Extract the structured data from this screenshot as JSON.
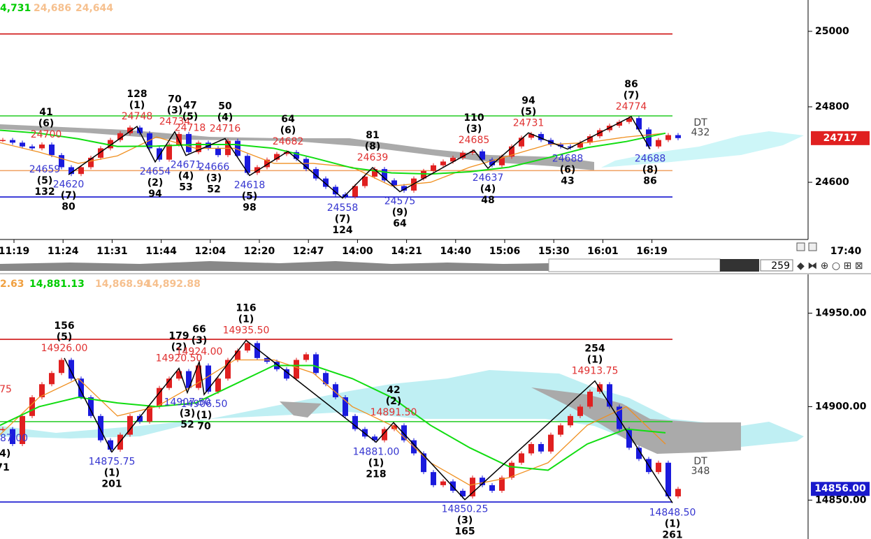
{
  "top_panel": {
    "legend": [
      "4,731",
      "24,686",
      "24,644"
    ],
    "ylim": [
      24454,
      25083
    ],
    "yticks": [
      25000,
      24800,
      24600
    ],
    "price_tag": "24717",
    "dt_label": "DT",
    "dt_value": "432",
    "times": [
      "11:19",
      "11:24",
      "11:31",
      "11:44",
      "12:04",
      "12:20",
      "12:47",
      "14:00",
      "14:21",
      "14:40",
      "15:06",
      "15:30",
      "16:01",
      "16:19"
    ],
    "corner_time": "17:40",
    "levels": [
      {
        "color": "#cc0000",
        "value": 24993
      },
      {
        "color": "#22cc22",
        "value": 24776
      },
      {
        "color": "#f0a060",
        "value": 24631
      },
      {
        "color": "#0000cc",
        "value": 24561
      }
    ],
    "closes": [
      24712,
      24705,
      24695,
      24690,
      24700,
      24672,
      24640,
      24622,
      24640,
      24665,
      24690,
      24712,
      24730,
      24745,
      24730,
      24690,
      24660,
      24700,
      24728,
      24680,
      24705,
      24690,
      24672,
      24710,
      24670,
      24625,
      24640,
      24660,
      24675,
      24680,
      24662,
      24635,
      24610,
      24588,
      24568,
      24562,
      24590,
      24615,
      24635,
      24605,
      24590,
      24578,
      24610,
      24630,
      24645,
      24655,
      24665,
      24678,
      24682,
      24660,
      24645,
      24668,
      24695,
      24718,
      24728,
      24712,
      24700,
      24695,
      24692,
      24705,
      24722,
      24738,
      24750,
      24760,
      24770,
      24740,
      24695,
      24712,
      24725,
      24717
    ],
    "ma_fast": [
      24705,
      24680,
      24650,
      24670,
      24720,
      24690,
      24690,
      24650,
      24650,
      24640,
      24590,
      24600,
      24640,
      24670,
      24700,
      24705,
      24720,
      24730
    ],
    "ma_slow": [
      24738,
      24730,
      24715,
      24695,
      24696,
      24700,
      24700,
      24690,
      24665,
      24638,
      24625,
      24622,
      24628,
      24640,
      24665,
      24692,
      24708,
      24730
    ],
    "annotations": [
      {
        "kind": "high",
        "count": "41",
        "rank": "(6)",
        "price": "24700"
      },
      {
        "kind": "low",
        "count": "132",
        "rank": "(5)",
        "price": "24659"
      },
      {
        "kind": "low",
        "count": "80",
        "rank": "(7)",
        "price": "24620"
      },
      {
        "kind": "high",
        "count": "128",
        "rank": "(1)",
        "price": "24748"
      },
      {
        "kind": "low",
        "count": "94",
        "rank": "(2)",
        "price": "24654"
      },
      {
        "kind": "high",
        "count": "70",
        "rank": "(3)",
        "price": "24734"
      },
      {
        "kind": "high",
        "count": "47",
        "rank": "(5)",
        "price": "24718"
      },
      {
        "kind": "low",
        "count": "53",
        "rank": "(4)",
        "price": "24671"
      },
      {
        "kind": "high",
        "count": "50",
        "rank": "(4)",
        "price": "24716"
      },
      {
        "kind": "low",
        "count": "52",
        "rank": "(3)",
        "price": "24666"
      },
      {
        "kind": "high",
        "count": "64",
        "rank": "(6)",
        "price": "24682"
      },
      {
        "kind": "low",
        "count": "98",
        "rank": "(5)",
        "price": "24618"
      },
      {
        "kind": "high",
        "count": "81",
        "rank": "(8)",
        "price": "24639"
      },
      {
        "kind": "low",
        "count": "124",
        "rank": "(7)",
        "price": "24558"
      },
      {
        "kind": "low",
        "count": "64",
        "rank": "(9)",
        "price": "24575"
      },
      {
        "kind": "high",
        "count": "110",
        "rank": "(3)",
        "price": "24685"
      },
      {
        "kind": "low",
        "count": "48",
        "rank": "(4)",
        "price": "24637"
      },
      {
        "kind": "high",
        "count": "94",
        "rank": "(5)",
        "price": "24731"
      },
      {
        "kind": "low",
        "count": "43",
        "rank": "(6)",
        "price": "24688"
      },
      {
        "kind": "high",
        "count": "86",
        "rank": "(7)",
        "price": "24774"
      },
      {
        "kind": "low",
        "count": "86",
        "rank": "(8)",
        "price": "24688"
      }
    ]
  },
  "toolbar": {
    "bar_count": "259"
  },
  "bottom_panel": {
    "legend": [
      "2.63",
      "14,881.13",
      "14,868.94",
      "14,892.88"
    ],
    "ylim": [
      14829.2,
      14970
    ],
    "yticks": [
      {
        "value": 14950,
        "label": "14950.00"
      },
      {
        "value": 14900,
        "label": "14900.00"
      },
      {
        "value": 14850,
        "label": "14850.00"
      }
    ],
    "price_tag": "14856.00",
    "dt_label": "DT",
    "dt_value": "348",
    "levels": [
      {
        "color": "#cc0000",
        "value": 14936
      },
      {
        "color": "#22cc22",
        "value": 14892
      },
      {
        "color": "#0000cc",
        "value": 14849
      }
    ],
    "closes": [
      14888,
      14880,
      14895,
      14905,
      14912,
      14918,
      14925,
      14915,
      14905,
      14895,
      14882,
      14877,
      14885,
      14895,
      14892,
      14900,
      14910,
      14915,
      14919,
      14910,
      14922,
      14908,
      14915,
      14925,
      14930,
      14934,
      14926,
      14924,
      14920,
      14915,
      14925,
      14928,
      14918,
      14912,
      14905,
      14895,
      14888,
      14884,
      14882,
      14888,
      14890,
      14882,
      14875,
      14865,
      14858,
      14860,
      14855,
      14852,
      14862,
      14858,
      14855,
      14862,
      14870,
      14875,
      14880,
      14876,
      14885,
      14890,
      14895,
      14900,
      14908,
      14912,
      14900,
      14888,
      14878,
      14872,
      14865,
      14870,
      14852,
      14856
    ],
    "ma_fast": [
      14885,
      14905,
      14915,
      14895,
      14900,
      14912,
      14925,
      14925,
      14918,
      14900,
      14890,
      14870,
      14858,
      14862,
      14870,
      14890,
      14900,
      14880
    ],
    "ma_slow": [
      14890,
      14900,
      14905,
      14902,
      14900,
      14902,
      14912,
      14922,
      14922,
      14915,
      14905,
      14890,
      14878,
      14868,
      14866,
      14880,
      14888,
      14886
    ],
    "edge_labels": [
      "75",
      "87.00",
      "(4)",
      "71"
    ],
    "annotations": [
      {
        "kind": "high",
        "count": "156",
        "rank": "(5)",
        "price": "14926.00"
      },
      {
        "kind": "low",
        "count": "201",
        "rank": "(1)",
        "price": "14875.75"
      },
      {
        "kind": "high",
        "count": "179",
        "rank": "(2)",
        "price": "14920.50"
      },
      {
        "kind": "high",
        "count": "66",
        "rank": "(3)",
        "price": "14924.00"
      },
      {
        "kind": "low",
        "count": "52",
        "rank": "(3)",
        "price": "14907.50"
      },
      {
        "kind": "low",
        "count": "70",
        "rank": "(1)",
        "price": "14906.50"
      },
      {
        "kind": "high",
        "count": "116",
        "rank": "(1)",
        "price": "14935.50"
      },
      {
        "kind": "low",
        "count": "218",
        "rank": "(1)",
        "price": "14881.00"
      },
      {
        "kind": "high",
        "count": "42",
        "rank": "(2)",
        "price": "14891.50"
      },
      {
        "kind": "low",
        "count": "165",
        "rank": "(3)",
        "price": "14850.25"
      },
      {
        "kind": "high",
        "count": "254",
        "rank": "(1)",
        "price": "14913.75"
      },
      {
        "kind": "low",
        "count": "261",
        "rank": "(1)",
        "price": "14848.50"
      }
    ]
  }
}
